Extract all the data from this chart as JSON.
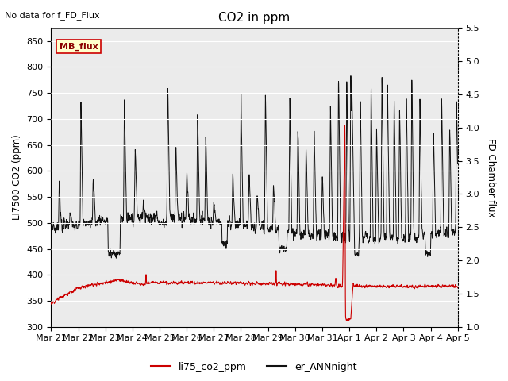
{
  "title": "CO2 in ppm",
  "top_left_text": "No data for f_FD_Flux",
  "ylabel_left": "LI7500 CO2 (ppm)",
  "ylabel_right": "FD Chamber flux",
  "ylim_left": [
    300,
    875
  ],
  "ylim_right": [
    1.0,
    5.5
  ],
  "yticks_left": [
    300,
    350,
    400,
    450,
    500,
    550,
    600,
    650,
    700,
    750,
    800,
    850
  ],
  "yticks_right": [
    1.0,
    1.5,
    2.0,
    2.5,
    3.0,
    3.5,
    4.0,
    4.5,
    5.0,
    5.5
  ],
  "xticklabels": [
    "Mar 21",
    "Mar 22",
    "Mar 23",
    "Mar 24",
    "Mar 25",
    "Mar 26",
    "Mar 27",
    "Mar 28",
    "Mar 29",
    "Mar 30",
    "Mar 31",
    "Apr 1",
    "Apr 2",
    "Apr 3",
    "Apr 4",
    "Apr 5"
  ],
  "legend_entries": [
    "li75_co2_ppm",
    "er_ANNnight"
  ],
  "line1_color": "#cc0000",
  "line2_color": "#111111",
  "plot_bg_color": "#ebebeb",
  "mb_flux_label": "MB_flux",
  "mb_flux_bg": "#ffffcc",
  "mb_flux_border": "#cc0000",
  "grid_color": "#ffffff"
}
